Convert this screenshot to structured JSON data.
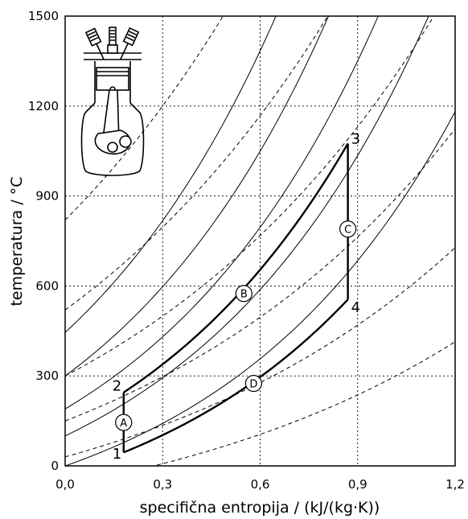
{
  "chart_data": {
    "type": "line",
    "title": "",
    "xlabel": "specifična entropija / (kJ/(kg·K))",
    "ylabel": "temperatura / °C",
    "xlim": [
      0.0,
      1.2
    ],
    "ylim": [
      0,
      1500
    ],
    "xticks": [
      "0,0",
      "0,3",
      "0,6",
      "0,9",
      "1,2"
    ],
    "yticks": [
      "0",
      "300",
      "600",
      "900",
      "1200",
      "1500"
    ],
    "grid": true,
    "points": [
      {
        "label": "1",
        "x": 0.18,
        "y": 45
      },
      {
        "label": "2",
        "x": 0.18,
        "y": 245
      },
      {
        "label": "3",
        "x": 0.87,
        "y": 1075
      },
      {
        "label": "4",
        "x": 0.87,
        "y": 555
      }
    ],
    "processes": [
      {
        "label": "A",
        "from": "1",
        "to": "2",
        "x": 0.18,
        "y": 145
      },
      {
        "label": "B",
        "from": "2",
        "to": "3",
        "x": 0.55,
        "y": 575
      },
      {
        "label": "C",
        "from": "3",
        "to": "4",
        "x": 0.87,
        "y": 790
      },
      {
        "label": "D",
        "from": "4",
        "to": "1",
        "x": 0.58,
        "y": 275
      }
    ],
    "isochores_solid_T_at_s0": [
      0,
      100,
      190,
      300,
      445
    ],
    "isobars_dashed_T_at_s0": [
      -65,
      30,
      150,
      300,
      520,
      820
    ]
  },
  "icon": "engine-cylinder-icon"
}
